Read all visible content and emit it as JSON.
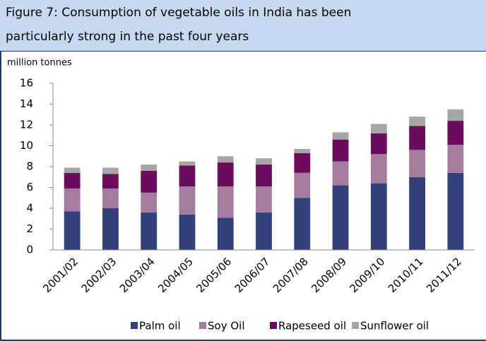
{
  "chart_data": {
    "type": "stacked_bar",
    "title": [
      "Figure 7: Consumption of vegetable oils in India has been",
      "particularly strong in the past four years"
    ],
    "y_label": "million tonnes",
    "categories": [
      "2001/02",
      "2002/03",
      "2003/04",
      "2004/05",
      "2005/06",
      "2006/07",
      "2007/08",
      "2008/09",
      "2009/10",
      "2010/11",
      "2011/12"
    ],
    "series": [
      {
        "name": "Palm oil",
        "color": "#33407a",
        "values": [
          3.7,
          4.0,
          3.6,
          3.4,
          3.1,
          3.6,
          5.0,
          6.2,
          6.4,
          7.0,
          7.4
        ]
      },
      {
        "name": "Soy Oil",
        "color": "#a67c9e",
        "values": [
          2.2,
          1.9,
          1.9,
          2.7,
          3.0,
          2.5,
          2.4,
          2.3,
          2.8,
          2.6,
          2.7
        ]
      },
      {
        "name": "Rapeseed oil",
        "color": "#6b0d5c",
        "values": [
          1.5,
          1.4,
          2.1,
          2.0,
          2.3,
          2.1,
          1.9,
          2.1,
          2.0,
          2.3,
          2.3
        ]
      },
      {
        "name": "Sunflower oil",
        "color": "#a6a6a6",
        "values": [
          0.5,
          0.6,
          0.6,
          0.4,
          0.6,
          0.6,
          0.4,
          0.7,
          0.9,
          0.9,
          1.1
        ]
      }
    ],
    "ylim": [
      0,
      16
    ],
    "yticks": [
      0,
      2,
      4,
      6,
      8,
      10,
      12,
      14,
      16
    ],
    "grid": false,
    "legend": "bottom"
  }
}
